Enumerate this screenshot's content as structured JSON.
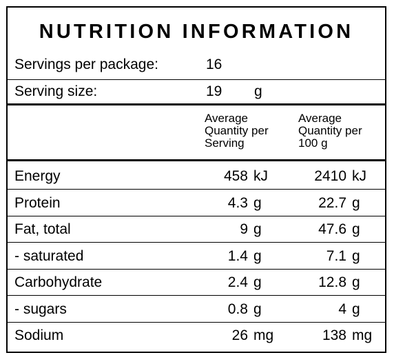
{
  "title": "NUTRITION INFORMATION",
  "servings": {
    "label": "Servings per package:",
    "value": "16"
  },
  "serving_size": {
    "label": "Serving size:",
    "value": "19",
    "unit": "g"
  },
  "headers": {
    "per_serving": "Average\nQuantity per\nServing",
    "per_100g": "Average\nQuantity per\n100 g"
  },
  "rows": [
    {
      "label": "Energy",
      "serving_value": "458",
      "serving_unit": "kJ",
      "per100_value": "2410",
      "per100_unit": "kJ"
    },
    {
      "label": "Protein",
      "serving_value": "4.3",
      "serving_unit": "g",
      "per100_value": "22.7",
      "per100_unit": "g"
    },
    {
      "label": "Fat, total",
      "serving_value": "9",
      "serving_unit": "g",
      "per100_value": "47.6",
      "per100_unit": "g"
    },
    {
      "label": "- saturated",
      "serving_value": "1.4",
      "serving_unit": "g",
      "per100_value": "7.1",
      "per100_unit": "g"
    },
    {
      "label": "Carbohydrate",
      "serving_value": "2.4",
      "serving_unit": "g",
      "per100_value": "12.8",
      "per100_unit": "g"
    },
    {
      "label": "- sugars",
      "serving_value": "0.8",
      "serving_unit": "g",
      "per100_value": "4",
      "per100_unit": "g"
    },
    {
      "label": "Sodium",
      "serving_value": "26",
      "serving_unit": "mg",
      "per100_value": "138",
      "per100_unit": "mg"
    }
  ]
}
